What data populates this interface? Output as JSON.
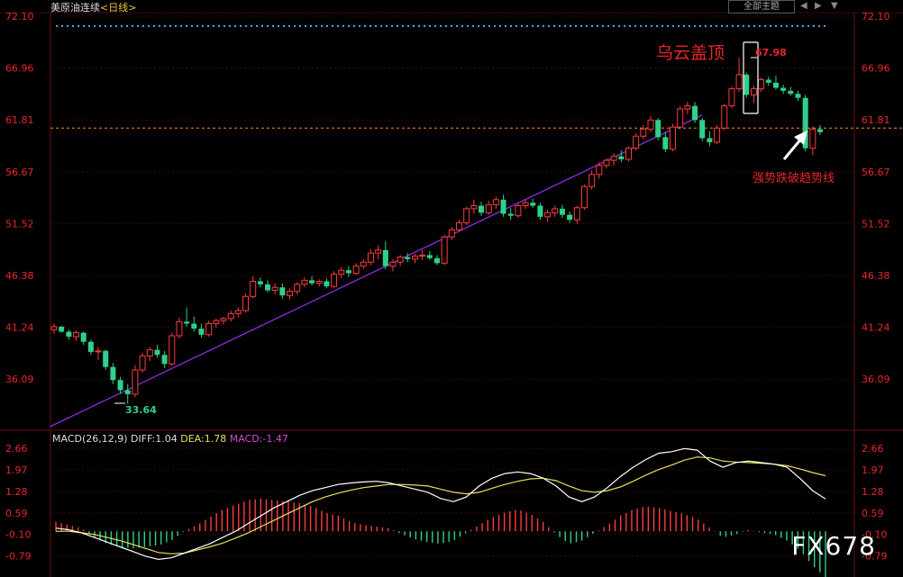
{
  "header": {
    "title": "美原油连续",
    "period": "<日线>",
    "theme_button": "全部主题",
    "theme_arrow": "▼"
  },
  "annotations": {
    "pattern_label": "乌云盖顶",
    "break_label": "强势跌破趋势线",
    "high_value": "67.98",
    "low_value": "33.64"
  },
  "macd": {
    "params": "MACD(26,12,9)",
    "diff": "DIFF:1.04",
    "dea": "DEA:1.78",
    "macd": "MACD:-1.47"
  },
  "watermark": "FX678",
  "colors": {
    "up": "#ff3b3b",
    "down": "#2ed18c",
    "trendline": "#8a2be2",
    "diff_line": "#ffffff",
    "dea_line": "#e8e05a",
    "macd_label": "#d34cd3",
    "axis_label": "#e8262c",
    "ref_line": "#ff8c1a"
  },
  "chart_data": [
    {
      "type": "candlestick",
      "title": "美原油连续 <日线>",
      "y_ticks": [
        "72.10",
        "66.96",
        "61.81",
        "56.67",
        "51.52",
        "46.38",
        "41.24",
        "36.09"
      ],
      "ylim": [
        31.2,
        72.1
      ],
      "reference_price": 61.0,
      "low_label": "33.64",
      "high_label": "67.98",
      "trendline": {
        "start": [
          0,
          31.4
        ],
        "end": [
          88,
          62.3
        ]
      },
      "candles": [
        [
          41.0,
          41.6,
          40.6,
          41.3
        ],
        [
          41.3,
          41.4,
          40.7,
          40.8
        ],
        [
          40.8,
          41.0,
          40.0,
          40.3
        ],
        [
          40.3,
          40.9,
          39.9,
          40.7
        ],
        [
          40.7,
          40.8,
          39.5,
          39.8
        ],
        [
          39.8,
          40.0,
          38.5,
          38.8
        ],
        [
          38.8,
          39.3,
          38.0,
          38.9
        ],
        [
          38.9,
          39.0,
          37.0,
          37.3
        ],
        [
          37.3,
          37.7,
          35.6,
          36.0
        ],
        [
          36.0,
          36.3,
          34.6,
          35.0
        ],
        [
          35.0,
          35.6,
          33.64,
          34.6
        ],
        [
          34.6,
          37.5,
          34.3,
          37.0
        ],
        [
          37.0,
          38.7,
          36.7,
          38.4
        ],
        [
          38.4,
          39.3,
          37.9,
          39.0
        ],
        [
          39.0,
          39.5,
          38.2,
          38.5
        ],
        [
          38.5,
          38.9,
          37.2,
          37.6
        ],
        [
          37.6,
          40.7,
          37.4,
          40.4
        ],
        [
          40.4,
          42.2,
          40.1,
          41.8
        ],
        [
          41.8,
          43.2,
          41.3,
          41.6
        ],
        [
          41.6,
          42.3,
          40.8,
          41.1
        ],
        [
          41.1,
          41.6,
          40.2,
          40.5
        ],
        [
          40.5,
          41.9,
          40.3,
          41.6
        ],
        [
          41.6,
          42.1,
          41.2,
          41.9
        ],
        [
          41.9,
          42.3,
          41.5,
          42.1
        ],
        [
          42.1,
          42.9,
          41.8,
          42.6
        ],
        [
          42.6,
          43.2,
          42.2,
          42.9
        ],
        [
          42.9,
          44.6,
          42.7,
          44.3
        ],
        [
          44.3,
          46.3,
          44.1,
          45.8
        ],
        [
          45.8,
          46.2,
          45.2,
          45.5
        ],
        [
          45.5,
          45.9,
          44.7,
          44.9
        ],
        [
          44.9,
          45.6,
          44.5,
          45.2
        ],
        [
          45.2,
          45.6,
          44.1,
          44.4
        ],
        [
          44.4,
          45.1,
          44.0,
          44.8
        ],
        [
          44.8,
          45.7,
          44.5,
          45.5
        ],
        [
          45.5,
          46.2,
          45.2,
          45.9
        ],
        [
          45.9,
          46.3,
          45.4,
          45.6
        ],
        [
          45.6,
          46.0,
          45.3,
          45.8
        ],
        [
          45.8,
          46.1,
          45.1,
          45.3
        ],
        [
          45.3,
          46.8,
          45.1,
          46.5
        ],
        [
          46.5,
          47.2,
          46.1,
          46.9
        ],
        [
          46.9,
          47.3,
          46.2,
          46.6
        ],
        [
          46.6,
          47.6,
          46.4,
          47.3
        ],
        [
          47.3,
          48.0,
          47.0,
          47.7
        ],
        [
          47.7,
          49.0,
          47.4,
          48.6
        ],
        [
          48.6,
          49.4,
          48.0,
          48.9
        ],
        [
          48.9,
          49.8,
          47.0,
          47.3
        ],
        [
          47.3,
          48.0,
          46.8,
          47.7
        ],
        [
          47.7,
          48.4,
          47.3,
          48.2
        ],
        [
          48.2,
          48.6,
          47.7,
          48.0
        ],
        [
          48.0,
          48.5,
          47.6,
          48.3
        ],
        [
          48.3,
          48.9,
          47.9,
          48.4
        ],
        [
          48.4,
          48.8,
          47.9,
          48.1
        ],
        [
          48.1,
          48.4,
          47.4,
          47.6
        ],
        [
          47.6,
          50.4,
          47.4,
          50.2
        ],
        [
          50.2,
          51.2,
          49.9,
          50.9
        ],
        [
          50.9,
          51.9,
          50.7,
          51.6
        ],
        [
          51.6,
          53.2,
          51.4,
          53.0
        ],
        [
          53.0,
          53.9,
          52.5,
          53.3
        ],
        [
          53.3,
          53.7,
          52.3,
          52.6
        ],
        [
          52.6,
          53.8,
          52.4,
          53.4
        ],
        [
          53.4,
          54.2,
          53.0,
          53.9
        ],
        [
          53.9,
          54.4,
          52.2,
          52.5
        ],
        [
          52.5,
          53.1,
          51.9,
          52.3
        ],
        [
          52.3,
          53.5,
          52.1,
          53.3
        ],
        [
          53.3,
          53.9,
          53.0,
          53.6
        ],
        [
          53.6,
          54.0,
          53.1,
          53.3
        ],
        [
          53.3,
          53.6,
          51.9,
          52.2
        ],
        [
          52.2,
          52.9,
          51.7,
          52.6
        ],
        [
          52.6,
          53.3,
          52.2,
          53.0
        ],
        [
          53.0,
          53.4,
          52.1,
          52.4
        ],
        [
          52.4,
          52.7,
          51.6,
          51.9
        ],
        [
          51.9,
          53.3,
          51.5,
          53.1
        ],
        [
          53.1,
          55.4,
          52.9,
          55.2
        ],
        [
          55.2,
          56.8,
          54.9,
          56.4
        ],
        [
          56.4,
          57.6,
          56.0,
          57.3
        ],
        [
          57.3,
          58.0,
          57.0,
          57.8
        ],
        [
          57.8,
          58.5,
          57.3,
          58.2
        ],
        [
          58.2,
          58.8,
          57.6,
          57.9
        ],
        [
          57.9,
          59.2,
          57.7,
          59.0
        ],
        [
          59.0,
          60.5,
          58.8,
          60.2
        ],
        [
          60.2,
          61.3,
          59.9,
          60.9
        ],
        [
          60.9,
          62.2,
          60.6,
          61.8
        ],
        [
          61.8,
          62.0,
          59.8,
          60.1
        ],
        [
          60.1,
          60.6,
          58.6,
          58.9
        ],
        [
          58.9,
          61.4,
          58.7,
          61.1
        ],
        [
          61.1,
          63.2,
          60.9,
          62.9
        ],
        [
          62.9,
          63.6,
          62.4,
          63.2
        ],
        [
          63.2,
          63.6,
          61.5,
          61.8
        ],
        [
          61.8,
          62.0,
          59.7,
          60.0
        ],
        [
          60.0,
          60.7,
          59.2,
          59.6
        ],
        [
          59.6,
          61.3,
          59.4,
          61.0
        ],
        [
          61.0,
          63.4,
          60.8,
          63.2
        ],
        [
          63.2,
          65.1,
          63.0,
          64.9
        ],
        [
          64.9,
          67.98,
          64.6,
          66.3
        ],
        [
          66.3,
          66.5,
          64.0,
          64.3
        ],
        [
          64.3,
          65.2,
          63.5,
          64.9
        ],
        [
          64.9,
          66.0,
          64.6,
          65.8
        ],
        [
          65.8,
          66.1,
          65.2,
          65.5
        ],
        [
          65.5,
          66.2,
          64.8,
          65.0
        ],
        [
          65.0,
          65.3,
          64.4,
          64.7
        ],
        [
          64.7,
          65.1,
          64.2,
          64.4
        ],
        [
          64.4,
          64.7,
          63.7,
          64.0
        ],
        [
          64.0,
          64.3,
          58.7,
          59.0
        ],
        [
          59.0,
          61.2,
          58.3,
          60.9
        ],
        [
          60.9,
          61.3,
          60.3,
          60.6
        ]
      ]
    },
    {
      "type": "line",
      "title": "MACD(26,12,9)",
      "y_ticks": [
        "2.66",
        "1.97",
        "1.28",
        "0.59",
        "-0.10",
        "-0.79"
      ],
      "ylim": [
        -1.35,
        2.66
      ],
      "series": [
        {
          "name": "DIFF",
          "values": [
            0.1,
            0.05,
            -0.05,
            -0.2,
            -0.35,
            -0.5,
            -0.65,
            -0.8,
            -0.9,
            -0.85,
            -0.7,
            -0.55,
            -0.4,
            -0.2,
            0.0,
            0.25,
            0.5,
            0.75,
            0.95,
            1.15,
            1.3,
            1.4,
            1.5,
            1.55,
            1.58,
            1.6,
            1.55,
            1.45,
            1.35,
            1.25,
            1.05,
            0.95,
            1.1,
            1.45,
            1.7,
            1.85,
            1.9,
            1.85,
            1.7,
            1.45,
            1.1,
            0.95,
            1.1,
            1.4,
            1.75,
            2.05,
            2.3,
            2.5,
            2.55,
            2.65,
            2.6,
            2.25,
            2.05,
            2.2,
            2.25,
            2.2,
            2.15,
            2.05,
            1.7,
            1.3,
            1.04
          ]
        },
        {
          "name": "DEA",
          "values": [
            0.0,
            0.0,
            -0.05,
            -0.1,
            -0.2,
            -0.3,
            -0.42,
            -0.55,
            -0.68,
            -0.72,
            -0.7,
            -0.6,
            -0.5,
            -0.38,
            -0.22,
            -0.05,
            0.15,
            0.35,
            0.55,
            0.75,
            0.95,
            1.1,
            1.22,
            1.32,
            1.4,
            1.45,
            1.5,
            1.5,
            1.48,
            1.45,
            1.35,
            1.25,
            1.2,
            1.25,
            1.38,
            1.5,
            1.6,
            1.68,
            1.7,
            1.62,
            1.45,
            1.3,
            1.25,
            1.3,
            1.42,
            1.6,
            1.8,
            1.98,
            2.12,
            2.28,
            2.38,
            2.35,
            2.25,
            2.22,
            2.2,
            2.18,
            2.15,
            2.1,
            2.0,
            1.88,
            1.78
          ]
        },
        {
          "name": "MACD",
          "values": [
            0.3,
            0.2,
            0.1,
            -0.2,
            -0.4,
            -0.5,
            -0.55,
            -0.5,
            -0.45,
            -0.3,
            0.0,
            0.2,
            0.45,
            0.7,
            0.85,
            1.0,
            1.05,
            1.0,
            0.95,
            0.9,
            0.8,
            0.6,
            0.5,
            0.3,
            0.2,
            0.15,
            0.1,
            -0.1,
            -0.25,
            -0.35,
            -0.4,
            -0.3,
            -0.05,
            0.2,
            0.45,
            0.6,
            0.7,
            0.55,
            0.3,
            -0.1,
            -0.4,
            -0.3,
            -0.05,
            0.2,
            0.5,
            0.7,
            0.8,
            0.75,
            0.65,
            0.55,
            0.4,
            0.1,
            -0.2,
            -0.1,
            0.05,
            -0.05,
            -0.1,
            -0.3,
            -0.6,
            -1.1,
            -1.47
          ]
        }
      ]
    }
  ]
}
